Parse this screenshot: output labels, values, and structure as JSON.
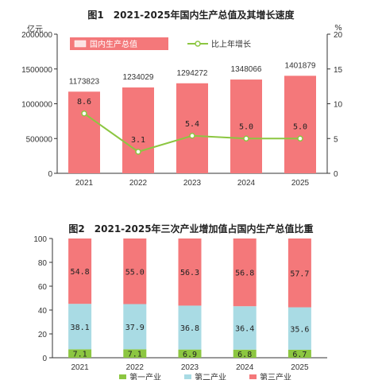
{
  "colors": {
    "gdp_bar": "#f4787a",
    "growth_line": "#8cc641",
    "primary": "#8cc641",
    "secondary": "#a9dbe4",
    "tertiary": "#f4787a",
    "legend_bg": "#f4787a"
  },
  "chart_data": [
    {
      "type": "bar",
      "title": "图1　2021-2025年国内生产总值及其增长速度",
      "ylabel_left": "亿元",
      "ylabel_right": "%",
      "categories": [
        "2021",
        "2022",
        "2023",
        "2024",
        "2025"
      ],
      "series": [
        {
          "name": "国内生产总值",
          "type": "bar",
          "axis": "left",
          "values": [
            1173823,
            1234029,
            1294272,
            1348066,
            1401879
          ],
          "labels": [
            "1173823",
            "1234029",
            "1294272",
            "1348066",
            "1401879"
          ]
        },
        {
          "name": "比上年增长",
          "type": "line",
          "axis": "right",
          "values": [
            8.6,
            3.1,
            5.4,
            5.0,
            5.0
          ],
          "labels": [
            "8.6",
            "3.1",
            "5.4",
            "5.0",
            "5.0"
          ]
        }
      ],
      "ylim_left": [
        0,
        2000000
      ],
      "yticks_left": [
        "0",
        "500000",
        "1000000",
        "1500000",
        "2000000"
      ],
      "ylim_right": [
        0,
        20
      ],
      "yticks_right": [
        "0",
        "5",
        "10",
        "15",
        "20"
      ],
      "legend_position": "top-left",
      "grid": false
    },
    {
      "type": "bar",
      "stacked": true,
      "title": "图2　2021-2025年三次产业增加值占国内生产总值比重",
      "categories": [
        "2021",
        "2022",
        "2023",
        "2024",
        "2025"
      ],
      "series": [
        {
          "name": "第一产业",
          "values": [
            7.1,
            7.1,
            6.9,
            6.8,
            6.7
          ],
          "labels": [
            "7.1",
            "7.1",
            "6.9",
            "6.8",
            "6.7"
          ]
        },
        {
          "name": "第二产业",
          "values": [
            38.1,
            37.9,
            36.8,
            36.4,
            35.6
          ],
          "labels": [
            "38.1",
            "37.9",
            "36.8",
            "36.4",
            "35.6"
          ]
        },
        {
          "name": "第三产业",
          "values": [
            54.8,
            55.0,
            56.3,
            56.8,
            57.7
          ],
          "labels": [
            "54.8",
            "55.0",
            "56.3",
            "56.8",
            "57.7"
          ]
        }
      ],
      "ylim": [
        0,
        100
      ],
      "yticks": [
        "0",
        "20",
        "40",
        "60",
        "80",
        "100"
      ],
      "legend_position": "bottom",
      "grid": false
    }
  ]
}
